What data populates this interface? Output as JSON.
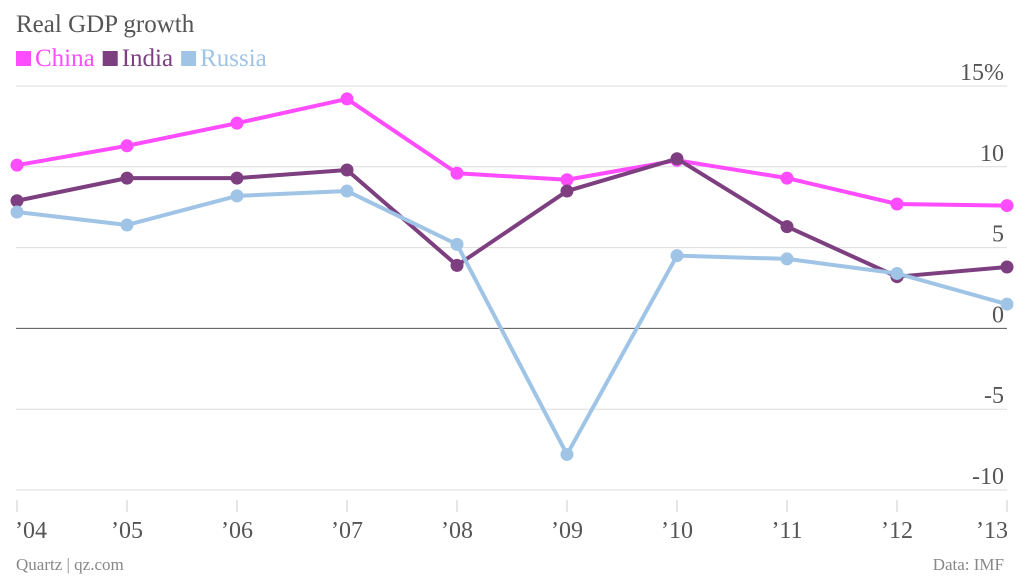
{
  "colors": {
    "china": "#ff4cff",
    "india": "#7d3f80",
    "russia": "#9fc4e6",
    "text": "#555555",
    "grid": "#dcdcdc"
  },
  "chart_data": {
    "type": "line",
    "title": "Real GDP growth",
    "categories": [
      "’04",
      "’05",
      "’06",
      "’07",
      "’08",
      "’09",
      "’10",
      "’11",
      "’12",
      "’13"
    ],
    "series": [
      {
        "name": "China",
        "color": "#ff4cff",
        "values": [
          10.1,
          11.3,
          12.7,
          14.2,
          9.6,
          9.2,
          10.4,
          9.3,
          7.7,
          7.6
        ]
      },
      {
        "name": "India",
        "color": "#7d3f80",
        "values": [
          7.9,
          9.3,
          9.3,
          9.8,
          3.9,
          8.5,
          10.5,
          6.3,
          3.2,
          3.8
        ]
      },
      {
        "name": "Russia",
        "color": "#9fc4e6",
        "values": [
          7.2,
          6.4,
          8.2,
          8.5,
          5.2,
          -7.8,
          4.5,
          4.3,
          3.4,
          1.5
        ]
      }
    ],
    "y_ticks": [
      {
        "value": 15,
        "label": "15%"
      },
      {
        "value": 10,
        "label": "10"
      },
      {
        "value": 5,
        "label": "5"
      },
      {
        "value": 0,
        "label": "0"
      },
      {
        "value": -5,
        "label": "-5"
      },
      {
        "value": -10,
        "label": "-10"
      }
    ],
    "ylim": [
      -10,
      15
    ],
    "grid": true,
    "legend_position": "top-left"
  },
  "footer": {
    "source_left": "Quartz | qz.com",
    "source_right": "Data: IMF"
  }
}
